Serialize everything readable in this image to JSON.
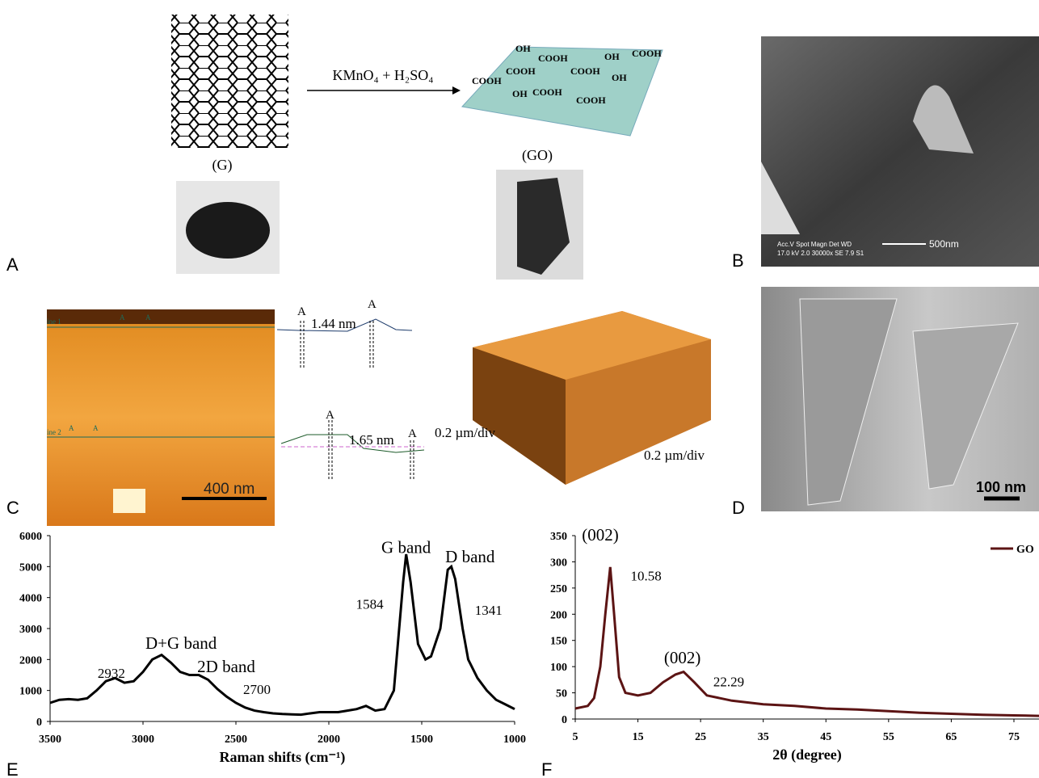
{
  "panel_labels": [
    "A",
    "B",
    "C",
    "D",
    "E",
    "F"
  ],
  "panel_a": {
    "reagent": "KMnO₄ + H₂SO₄",
    "graphite_label": "(G)",
    "go_label": "(GO)",
    "groups": [
      "OH",
      "COOH",
      "OH",
      "COOH",
      "COOH",
      "COOH",
      "COOH",
      "OH",
      "OH",
      "COOH",
      "COOH"
    ]
  },
  "panel_b": {
    "info_header": "Acc.V  Spot Magn   Det  WD",
    "info_values": "17.0 kV 2.0  30000x   SE   7.9   S1",
    "scale_bar": "500nm"
  },
  "panel_c": {
    "line_labels": [
      "ine 1",
      "ine 2"
    ],
    "marker": "A",
    "profile_heights": [
      "1.44 nm",
      "1.65 nm"
    ],
    "scale_bar": "400 nm",
    "axis_scales": [
      "0.2 µm/div",
      "0.2 µm/div"
    ]
  },
  "panel_d": {
    "scale_bar": "100 nm"
  },
  "chart_data": [
    {
      "type": "line",
      "xlabel": "Raman shifts (cm⁻¹)",
      "xlim": [
        3500,
        1000
      ],
      "xticks": [
        3500,
        3000,
        2500,
        2000,
        1500,
        1000
      ],
      "ylim": [
        0,
        6000
      ],
      "yticks": [
        0,
        1000,
        2000,
        3000,
        4000,
        5000,
        6000
      ],
      "series": [
        {
          "color": "#000000",
          "x": [
            3500,
            3450,
            3400,
            3350,
            3300,
            3250,
            3200,
            3150,
            3100,
            3050,
            3000,
            2950,
            2900,
            2850,
            2800,
            2750,
            2700,
            2650,
            2600,
            2550,
            2500,
            2450,
            2400,
            2350,
            2300,
            2250,
            2200,
            2150,
            2100,
            2050,
            2000,
            1950,
            1900,
            1850,
            1800,
            1750,
            1700,
            1650,
            1600,
            1584,
            1560,
            1520,
            1480,
            1450,
            1400,
            1360,
            1341,
            1320,
            1280,
            1250,
            1200,
            1150,
            1100,
            1050,
            1000
          ],
          "values": [
            600,
            700,
            720,
            700,
            750,
            1000,
            1300,
            1400,
            1250,
            1300,
            1600,
            2000,
            2150,
            1900,
            1600,
            1500,
            1500,
            1350,
            1050,
            800,
            600,
            450,
            350,
            300,
            260,
            240,
            230,
            220,
            260,
            300,
            300,
            300,
            350,
            400,
            500,
            350,
            400,
            1000,
            4500,
            5400,
            4500,
            2500,
            2000,
            2100,
            3000,
            4900,
            5000,
            4600,
            3000,
            2000,
            1400,
            1000,
            700,
            550,
            400
          ]
        }
      ],
      "annotations": [
        {
          "text": "G band",
          "x": 1584,
          "y": 5600
        },
        {
          "text": "D band",
          "x": 1240,
          "y": 5300
        },
        {
          "text": "1584",
          "x": 1780,
          "y": 3800
        },
        {
          "text": "1341",
          "x": 1140,
          "y": 3600
        },
        {
          "text": "D+G band",
          "x": 2795,
          "y": 2500
        },
        {
          "text": "2932",
          "x": 3170,
          "y": 1560
        },
        {
          "text": "2D band",
          "x": 2552,
          "y": 1750
        },
        {
          "text": "2700",
          "x": 2387,
          "y": 1040
        }
      ]
    },
    {
      "type": "line",
      "xlabel": "2θ (degree)",
      "xlim": [
        5,
        79
      ],
      "xticks": [
        5,
        15,
        25,
        35,
        45,
        55,
        65,
        75
      ],
      "ylim": [
        0,
        350
      ],
      "yticks": [
        0,
        50,
        100,
        150,
        200,
        250,
        300,
        350
      ],
      "legend": "upper right",
      "series": [
        {
          "name": "GO",
          "color": "#5c1414",
          "x": [
            5,
            7,
            8,
            9,
            9.8,
            10.58,
            11.2,
            12,
            13,
            15,
            17,
            19,
            21,
            22.29,
            24,
            26,
            30,
            35,
            40,
            45,
            50,
            55,
            60,
            65,
            70,
            75,
            79
          ],
          "values": [
            20,
            25,
            40,
            100,
            200,
            290,
            200,
            80,
            50,
            45,
            50,
            70,
            85,
            90,
            70,
            45,
            35,
            28,
            25,
            20,
            18,
            15,
            12,
            10,
            8,
            7,
            6
          ]
        }
      ],
      "annotations": [
        {
          "text": "(002)",
          "x": 9,
          "y": 350
        },
        {
          "text": "10.58",
          "x": 16.3,
          "y": 274
        },
        {
          "text": "(002)",
          "x": 22.1,
          "y": 116
        },
        {
          "text": "22.29",
          "x": 29.5,
          "y": 72
        }
      ]
    }
  ]
}
